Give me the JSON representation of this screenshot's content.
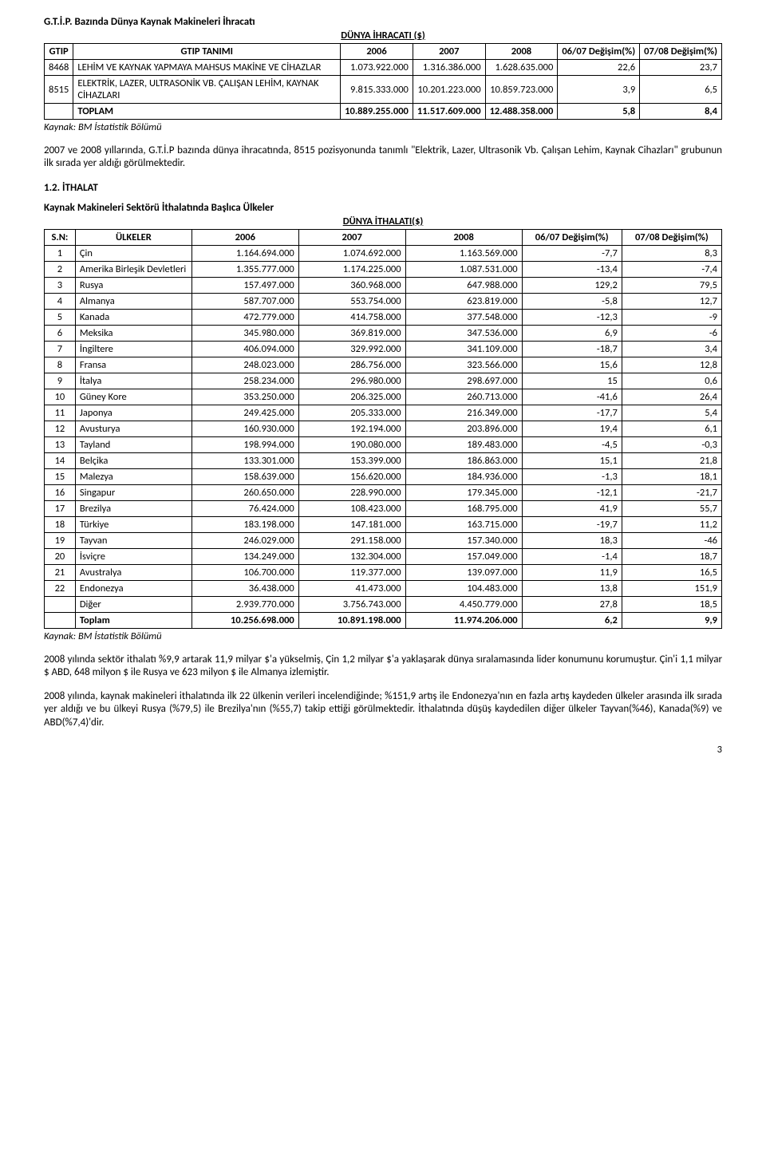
{
  "titles": {
    "doc1": "G.T.İ.P. Bazında Dünya Kaynak Makineleri İhracatı",
    "tbl1": "DÜNYA İHRACATI ($)",
    "source": "Kaynak: BM İstatistik Bölümü",
    "para1": "2007 ve 2008 yıllarında, G.T.İ.P bazında dünya ihracatında, 8515 pozisyonunda tanımlı \"Elektrik, Lazer, Ultrasonik Vb. Çalışan Lehim, Kaynak Cihazları\" grubunun ilk sırada yer aldığı görülmektedir.",
    "sec2": "1.2. İTHALAT",
    "sub2": "Kaynak Makineleri Sektörü İthalatında Başlıca Ülkeler",
    "tbl2": "DÜNYA İTHALATI($)",
    "para2": "2008 yılında sektör ithalatı %9,9 artarak 11,9 milyar $'a yükselmiş, Çin 1,2 milyar $'a yaklaşarak dünya sıralamasında lider konumunu korumuştur. Çin'i 1,1 milyar $ ABD, 648 milyon  $ ile Rusya ve 623 milyon $ ile Almanya izlemiştir.",
    "para3": "2008 yılında, kaynak makineleri ithalatında ilk 22 ülkenin verileri incelendiğinde; %151,9 artış ile  Endonezya'nın en fazla artış kaydeden ülkeler arasında ilk sırada yer aldığı ve bu ülkeyi Rusya (%79,5) ile Brezilya'nın (%55,7) takip ettiği görülmektedir. İthalatında düşüş kaydedilen diğer ülkeler Tayvan(%46), Kanada(%9) ve ABD(%7,4)'dir.",
    "pagenum": "3"
  },
  "t1": {
    "h_gtip": "GTIP",
    "h_tanim": "GTIP TANIMI",
    "h_2006": "2006",
    "h_2007": "2007",
    "h_2008": "2008",
    "h_0607": "06/07 Değişim(%)",
    "h_0708": "07/08 Değişim(%)",
    "r1": {
      "gtip": "8468",
      "tanim": "LEHİM VE KAYNAK YAPMAYA MAHSUS MAKİNE VE CİHAZLAR",
      "v06": "1.073.922.000",
      "v07": "1.316.386.000",
      "v08": "1.628.635.000",
      "d67": "22,6",
      "d78": "23,7"
    },
    "r2": {
      "gtip": "8515",
      "tanim": "ELEKTRİK, LAZER, ULTRASONİK VB. ÇALIŞAN LEHİM, KAYNAK CİHAZLARI",
      "v06": "9.815.333.000",
      "v07": "10.201.223.000",
      "v08": "10.859.723.000",
      "d67": "3,9",
      "d78": "6,5"
    },
    "tot": {
      "label": "TOPLAM",
      "v06": "10.889.255.000",
      "v07": "11.517.609.000",
      "v08": "12.488.358.000",
      "d67": "5,8",
      "d78": "8,4"
    }
  },
  "t2": {
    "h_sn": "S.N:",
    "h_ulke": "ÜLKELER",
    "h_2006": "2006",
    "h_2007": "2007",
    "h_2008": "2008",
    "h_0607": "06/07 Değişim(%)",
    "h_0708": "07/08 Değişim(%)",
    "rows": [
      {
        "sn": "1",
        "c": "Çin",
        "v06": "1.164.694.000",
        "v07": "1.074.692.000",
        "v08": "1.163.569.000",
        "d67": "-7,7",
        "d78": "8,3"
      },
      {
        "sn": "2",
        "c": "Amerika Birleşik Devletleri",
        "v06": "1.355.777.000",
        "v07": "1.174.225.000",
        "v08": "1.087.531.000",
        "d67": "-13,4",
        "d78": "-7,4"
      },
      {
        "sn": "3",
        "c": "Rusya",
        "v06": "157.497.000",
        "v07": "360.968.000",
        "v08": "647.988.000",
        "d67": "129,2",
        "d78": "79,5"
      },
      {
        "sn": "4",
        "c": "Almanya",
        "v06": "587.707.000",
        "v07": "553.754.000",
        "v08": "623.819.000",
        "d67": "-5,8",
        "d78": "12,7"
      },
      {
        "sn": "5",
        "c": "Kanada",
        "v06": "472.779.000",
        "v07": "414.758.000",
        "v08": "377.548.000",
        "d67": "-12,3",
        "d78": "-9"
      },
      {
        "sn": "6",
        "c": "Meksika",
        "v06": "345.980.000",
        "v07": "369.819.000",
        "v08": "347.536.000",
        "d67": "6,9",
        "d78": "-6"
      },
      {
        "sn": "7",
        "c": "İngiltere",
        "v06": "406.094.000",
        "v07": "329.992.000",
        "v08": "341.109.000",
        "d67": "-18,7",
        "d78": "3,4"
      },
      {
        "sn": "8",
        "c": "Fransa",
        "v06": "248.023.000",
        "v07": "286.756.000",
        "v08": "323.566.000",
        "d67": "15,6",
        "d78": "12,8"
      },
      {
        "sn": "9",
        "c": "İtalya",
        "v06": "258.234.000",
        "v07": "296.980.000",
        "v08": "298.697.000",
        "d67": "15",
        "d78": "0,6"
      },
      {
        "sn": "10",
        "c": "Güney Kore",
        "v06": "353.250.000",
        "v07": "206.325.000",
        "v08": "260.713.000",
        "d67": "-41,6",
        "d78": "26,4"
      },
      {
        "sn": "11",
        "c": "Japonya",
        "v06": "249.425.000",
        "v07": "205.333.000",
        "v08": "216.349.000",
        "d67": "-17,7",
        "d78": "5,4"
      },
      {
        "sn": "12",
        "c": "Avusturya",
        "v06": "160.930.000",
        "v07": "192.194.000",
        "v08": "203.896.000",
        "d67": "19,4",
        "d78": "6,1"
      },
      {
        "sn": "13",
        "c": "Tayland",
        "v06": "198.994.000",
        "v07": "190.080.000",
        "v08": "189.483.000",
        "d67": "-4,5",
        "d78": "-0,3"
      },
      {
        "sn": "14",
        "c": "Belçika",
        "v06": "133.301.000",
        "v07": "153.399.000",
        "v08": "186.863.000",
        "d67": "15,1",
        "d78": "21,8"
      },
      {
        "sn": "15",
        "c": "Malezya",
        "v06": "158.639.000",
        "v07": "156.620.000",
        "v08": "184.936.000",
        "d67": "-1,3",
        "d78": "18,1"
      },
      {
        "sn": "16",
        "c": "Singapur",
        "v06": "260.650.000",
        "v07": "228.990.000",
        "v08": "179.345.000",
        "d67": "-12,1",
        "d78": "-21,7"
      },
      {
        "sn": "17",
        "c": "Brezilya",
        "v06": "76.424.000",
        "v07": "108.423.000",
        "v08": "168.795.000",
        "d67": "41,9",
        "d78": "55,7"
      },
      {
        "sn": "18",
        "c": "Türkiye",
        "v06": "183.198.000",
        "v07": "147.181.000",
        "v08": "163.715.000",
        "d67": "-19,7",
        "d78": "11,2"
      },
      {
        "sn": "19",
        "c": "Tayvan",
        "v06": "246.029.000",
        "v07": "291.158.000",
        "v08": "157.340.000",
        "d67": "18,3",
        "d78": "-46"
      },
      {
        "sn": "20",
        "c": "İsviçre",
        "v06": "134.249.000",
        "v07": "132.304.000",
        "v08": "157.049.000",
        "d67": "-1,4",
        "d78": "18,7"
      },
      {
        "sn": "21",
        "c": "Avustralya",
        "v06": "106.700.000",
        "v07": "119.377.000",
        "v08": "139.097.000",
        "d67": "11,9",
        "d78": "16,5"
      },
      {
        "sn": "22",
        "c": "Endonezya",
        "v06": "36.438.000",
        "v07": "41.473.000",
        "v08": "104.483.000",
        "d67": "13,8",
        "d78": "151,9"
      }
    ],
    "other": {
      "c": "Diğer",
      "v06": "2.939.770.000",
      "v07": "3.756.743.000",
      "v08": "4.450.779.000",
      "d67": "27,8",
      "d78": "18,5"
    },
    "total": {
      "c": "Toplam",
      "v06": "10.256.698.000",
      "v07": "10.891.198.000",
      "v08": "11.974.206.000",
      "d67": "6,2",
      "d78": "9,9"
    }
  }
}
